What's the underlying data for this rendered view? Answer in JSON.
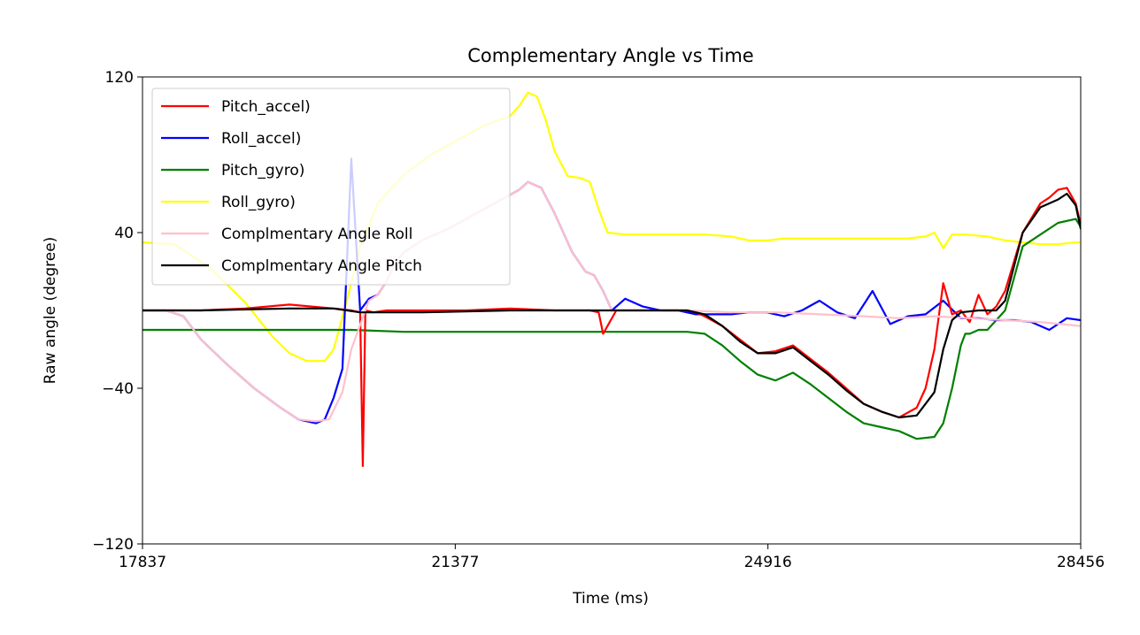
{
  "chart_data": {
    "type": "line",
    "title": "Complementary Angle vs Time",
    "xlabel": "Time (ms)",
    "ylabel": "Raw angle (degree)",
    "xlim": [
      17837,
      28456
    ],
    "ylim": [
      -120,
      120
    ],
    "xticks": [
      17837,
      21377,
      24916,
      28456
    ],
    "xtick_labels": [
      "17837",
      "21377",
      "24916",
      "28456"
    ],
    "yticks": [
      120,
      40,
      -40,
      -120
    ],
    "ytick_labels": [
      "120",
      "40",
      "−40",
      "−120"
    ],
    "legend_position": "top-left",
    "grid": false,
    "series": [
      {
        "name": "Roll_gyro)",
        "color": "#ffff00",
        "x": [
          17837,
          18200,
          18600,
          19000,
          19300,
          19500,
          19700,
          19900,
          20000,
          20150,
          20300,
          20500,
          20800,
          21100,
          21300,
          21500,
          21700,
          22000,
          22100,
          22200,
          22300,
          22400,
          22500,
          22650,
          22800,
          22900,
          23000,
          23100,
          23300,
          23700,
          24200,
          24500,
          24700,
          24916,
          25100,
          25500,
          26000,
          26200,
          26500,
          26700,
          26800,
          26900,
          27000,
          27150,
          27400,
          27600,
          27800,
          28000,
          28200,
          28400,
          28456
        ],
        "values": [
          35,
          34,
          22,
          4,
          -13,
          -22,
          -26,
          -26,
          -20,
          5,
          33,
          55,
          70,
          80,
          85,
          90,
          95,
          100,
          105,
          112,
          110,
          98,
          82,
          69,
          68,
          66,
          52,
          40,
          39,
          39,
          39,
          38,
          36,
          36,
          37,
          37,
          37,
          37,
          37,
          38,
          40,
          32,
          39,
          39,
          38,
          36,
          35,
          34,
          34,
          35,
          35
        ]
      },
      {
        "name": "Pitch_gyro)",
        "color": "#008000",
        "x": [
          17837,
          18500,
          19500,
          20200,
          20800,
          21500,
          22500,
          23500,
          24000,
          24200,
          24400,
          24600,
          24800,
          25000,
          25200,
          25400,
          25600,
          25800,
          26000,
          26200,
          26400,
          26600,
          26800,
          26900,
          27000,
          27100,
          27150,
          27200,
          27300,
          27400,
          27600,
          27800,
          28000,
          28200,
          28400,
          28456
        ],
        "values": [
          -10,
          -10,
          -10,
          -10,
          -11,
          -11,
          -11,
          -11,
          -11,
          -12,
          -18,
          -26,
          -33,
          -36,
          -32,
          -38,
          -45,
          -52,
          -58,
          -60,
          -62,
          -66,
          -65,
          -58,
          -40,
          -18,
          -12,
          -12,
          -10,
          -10,
          0,
          33,
          39,
          45,
          47,
          43
        ]
      },
      {
        "name": "Roll_accel)",
        "color": "#0000ff",
        "x": [
          17837,
          18100,
          18300,
          18500,
          18800,
          19100,
          19400,
          19600,
          19800,
          19900,
          20000,
          20100,
          20200,
          20300,
          20400,
          20500,
          20600,
          20700,
          20800,
          20900,
          21000,
          21100,
          21300,
          21500,
          21700,
          21900,
          22100,
          22200,
          22350,
          22500,
          22700,
          22850,
          22950,
          23050,
          23150,
          23300,
          23500,
          23700,
          23900,
          24100,
          24300,
          24500,
          24700,
          24900,
          25100,
          25300,
          25500,
          25700,
          25900,
          26100,
          26300,
          26500,
          26700,
          26900,
          27100,
          27300,
          27500,
          27700,
          27900,
          28100,
          28300,
          28456
        ],
        "values": [
          0,
          0,
          -3,
          -15,
          -28,
          -40,
          -50,
          -56,
          -58,
          -56,
          -45,
          -30,
          78,
          0,
          6,
          8,
          15,
          25,
          30,
          33,
          36,
          38,
          42,
          47,
          52,
          57,
          62,
          66,
          63,
          50,
          30,
          20,
          18,
          10,
          0,
          6,
          2,
          0,
          0,
          -2,
          -2,
          -2,
          -1,
          -1,
          -3,
          0,
          5,
          -1,
          -4,
          10,
          -7,
          -3,
          -2,
          5,
          -4,
          -4,
          -5,
          -5,
          -6,
          -10,
          -4,
          -5
        ]
      },
      {
        "name": "Pitch_accel)",
        "color": "#ff0000",
        "x": [
          17837,
          18500,
          19000,
          19500,
          20000,
          20200,
          20300,
          20330,
          20360,
          20450,
          20600,
          21000,
          21500,
          22000,
          22500,
          22900,
          23000,
          23050,
          23200,
          23500,
          24000,
          24100,
          24200,
          24400,
          24600,
          24800,
          25000,
          25200,
          25400,
          25600,
          25800,
          26000,
          26200,
          26400,
          26600,
          26700,
          26800,
          26900,
          27000,
          27100,
          27200,
          27300,
          27400,
          27500,
          27600,
          27800,
          28000,
          28100,
          28200,
          28300,
          28400,
          28456
        ],
        "values": [
          0,
          0,
          1,
          3,
          1,
          0,
          -1,
          -80,
          0,
          -1,
          0,
          0,
          0,
          1,
          0,
          0,
          -1,
          -12,
          0,
          0,
          0,
          -1,
          -3,
          -8,
          -15,
          -22,
          -21,
          -18,
          -25,
          -32,
          -40,
          -48,
          -52,
          -55,
          -50,
          -40,
          -20,
          14,
          -2,
          0,
          -6,
          8,
          -2,
          2,
          10,
          40,
          55,
          58,
          62,
          63,
          55,
          44
        ]
      },
      {
        "name": "Complmentary Angle Roll",
        "color": "#ffc0cb",
        "x": [
          17837,
          18100,
          18300,
          18500,
          18800,
          19100,
          19400,
          19600,
          19800,
          19950,
          20100,
          20200,
          20400,
          20500,
          20600,
          20700,
          20800,
          20900,
          21000,
          21100,
          21300,
          21500,
          21700,
          21900,
          22100,
          22200,
          22350,
          22500,
          22700,
          22850,
          22950,
          23050,
          23150,
          23400,
          24000,
          24500,
          25000,
          25500,
          26000,
          26400,
          26800,
          27200,
          27600,
          28000,
          28456
        ],
        "values": [
          0,
          0,
          -3,
          -15,
          -28,
          -40,
          -50,
          -56,
          -57,
          -56,
          -42,
          -20,
          5,
          8,
          15,
          25,
          30,
          33,
          36,
          38,
          42,
          47,
          52,
          57,
          62,
          66,
          63,
          50,
          30,
          20,
          18,
          10,
          0,
          0,
          0,
          -1,
          -1,
          -2,
          -3,
          -4,
          -3,
          -4,
          -5,
          -6,
          -8
        ]
      },
      {
        "name": "Complmentary Angle Pitch",
        "color": "#000000",
        "x": [
          17837,
          18500,
          19500,
          20000,
          20300,
          21000,
          22000,
          23000,
          23500,
          24000,
          24200,
          24400,
          24600,
          24800,
          25000,
          25200,
          25400,
          25600,
          25800,
          26000,
          26200,
          26400,
          26600,
          26800,
          26900,
          27000,
          27100,
          27300,
          27500,
          27600,
          27800,
          28000,
          28200,
          28300,
          28400,
          28456
        ],
        "values": [
          0,
          0,
          1,
          1,
          -1,
          -1,
          0,
          0,
          0,
          0,
          -2,
          -8,
          -16,
          -22,
          -22,
          -19,
          -26,
          -33,
          -41,
          -48,
          -52,
          -55,
          -54,
          -42,
          -20,
          -5,
          -1,
          0,
          0,
          5,
          40,
          53,
          57,
          60,
          54,
          42
        ]
      }
    ]
  }
}
